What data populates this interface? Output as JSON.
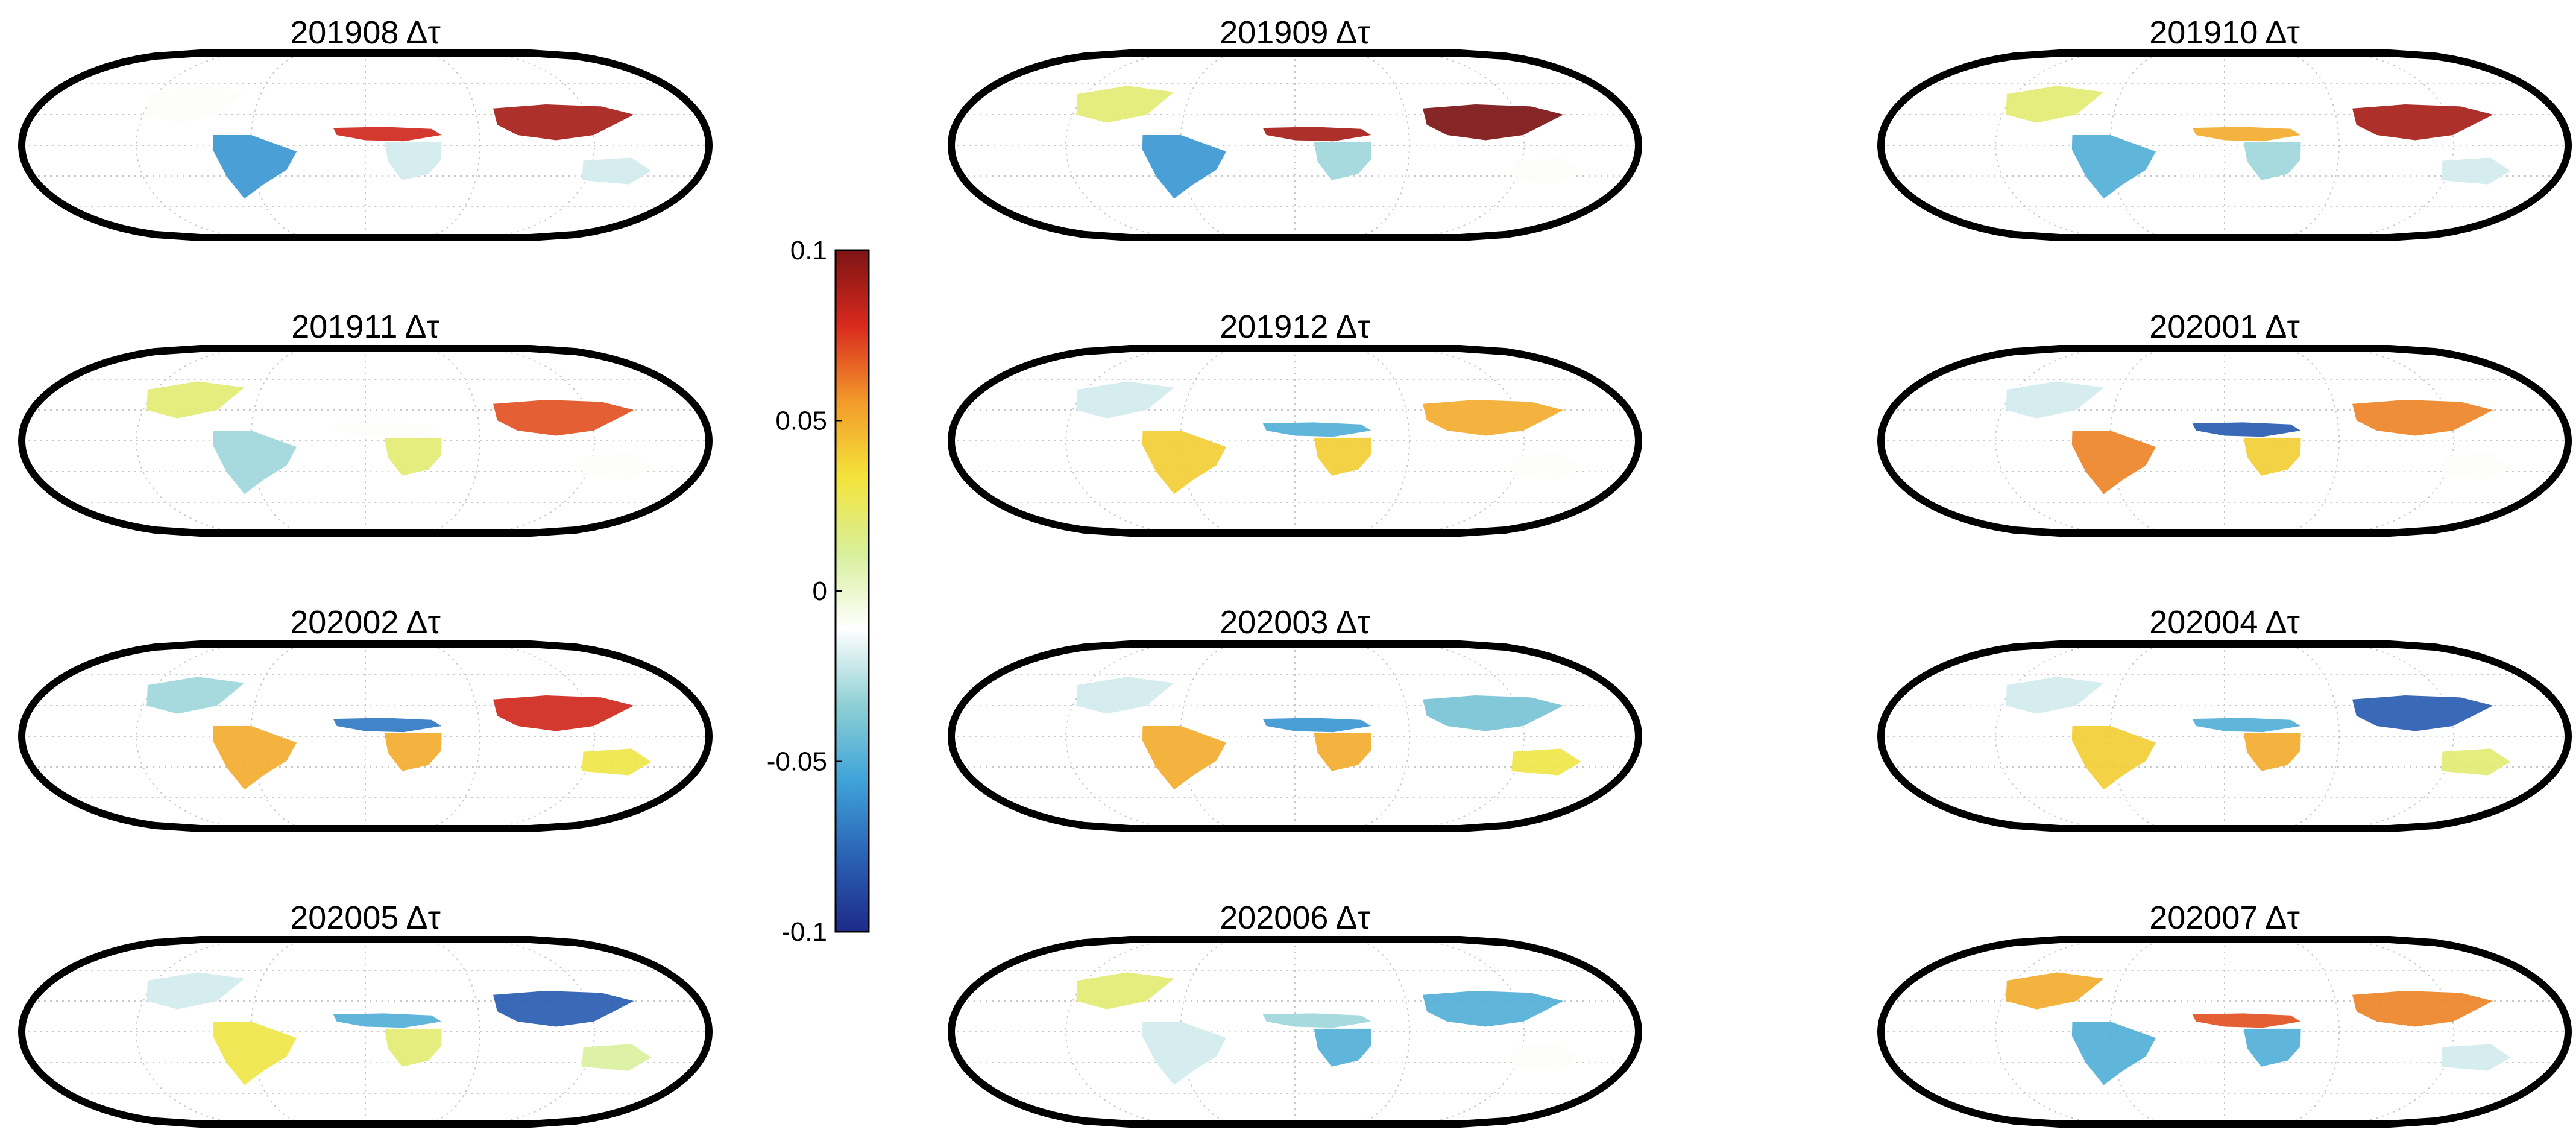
{
  "figure": {
    "panels": [
      {
        "id": "201908",
        "title": "201908 Δτ",
        "regions": {
          "na": -0.01,
          "sa": -0.06,
          "af_n": 0.08,
          "af_s": -0.02,
          "asia": 0.09,
          "aus": -0.02
        }
      },
      {
        "id": "201909",
        "title": "201909 Δτ",
        "regions": {
          "na": 0.02,
          "sa": -0.06,
          "af_n": 0.09,
          "af_s": -0.03,
          "asia": 0.1,
          "aus": -0.01
        }
      },
      {
        "id": "201910",
        "title": "201910 Δτ",
        "regions": {
          "na": 0.02,
          "sa": -0.05,
          "af_n": 0.05,
          "af_s": -0.03,
          "asia": 0.09,
          "aus": -0.02
        }
      },
      {
        "id": "201911",
        "title": "201911 Δτ",
        "regions": {
          "na": 0.02,
          "sa": -0.03,
          "af_n": -0.01,
          "af_s": 0.02,
          "asia": 0.07,
          "aus": -0.01
        }
      },
      {
        "id": "201912",
        "title": "201912 Δτ",
        "regions": {
          "na": -0.02,
          "sa": 0.04,
          "af_n": -0.05,
          "af_s": 0.04,
          "asia": 0.05,
          "aus": -0.01
        }
      },
      {
        "id": "202001",
        "title": "202001 Δτ",
        "regions": {
          "na": -0.02,
          "sa": 0.06,
          "af_n": -0.08,
          "af_s": 0.04,
          "asia": 0.06,
          "aus": -0.01
        }
      },
      {
        "id": "202002",
        "title": "202002 Δτ",
        "regions": {
          "na": -0.03,
          "sa": 0.05,
          "af_n": -0.07,
          "af_s": 0.05,
          "asia": 0.08,
          "aus": 0.03
        }
      },
      {
        "id": "202003",
        "title": "202003 Δτ",
        "regions": {
          "na": -0.02,
          "sa": 0.05,
          "af_n": -0.06,
          "af_s": 0.05,
          "asia": -0.04,
          "aus": 0.03
        }
      },
      {
        "id": "202004",
        "title": "202004 Δτ",
        "regions": {
          "na": -0.02,
          "sa": 0.04,
          "af_n": -0.05,
          "af_s": 0.05,
          "asia": -0.08,
          "aus": 0.02
        }
      },
      {
        "id": "202005",
        "title": "202005 Δτ",
        "regions": {
          "na": -0.02,
          "sa": 0.03,
          "af_n": -0.05,
          "af_s": 0.02,
          "asia": -0.08,
          "aus": 0.01
        }
      },
      {
        "id": "202006",
        "title": "202006 Δτ",
        "regions": {
          "na": 0.02,
          "sa": -0.02,
          "af_n": -0.03,
          "af_s": -0.05,
          "asia": -0.05,
          "aus": -0.01
        }
      },
      {
        "id": "202007",
        "title": "202007 Δτ",
        "regions": {
          "na": 0.05,
          "sa": -0.05,
          "af_n": 0.07,
          "af_s": -0.05,
          "asia": 0.06,
          "aus": -0.02
        }
      }
    ],
    "colorbar": {
      "ticks": [
        "0.1",
        "0.05",
        "0",
        "-0.05",
        "-0.1"
      ],
      "min": -0.1,
      "max": 0.1,
      "colormap": [
        "#1d2a8a",
        "#2a62b5",
        "#3fa4d9",
        "#8fd0d5",
        "#ffffff",
        "#d8ef9a",
        "#f3e43a",
        "#f39a2a",
        "#d92a1e",
        "#7d1414"
      ]
    }
  }
}
